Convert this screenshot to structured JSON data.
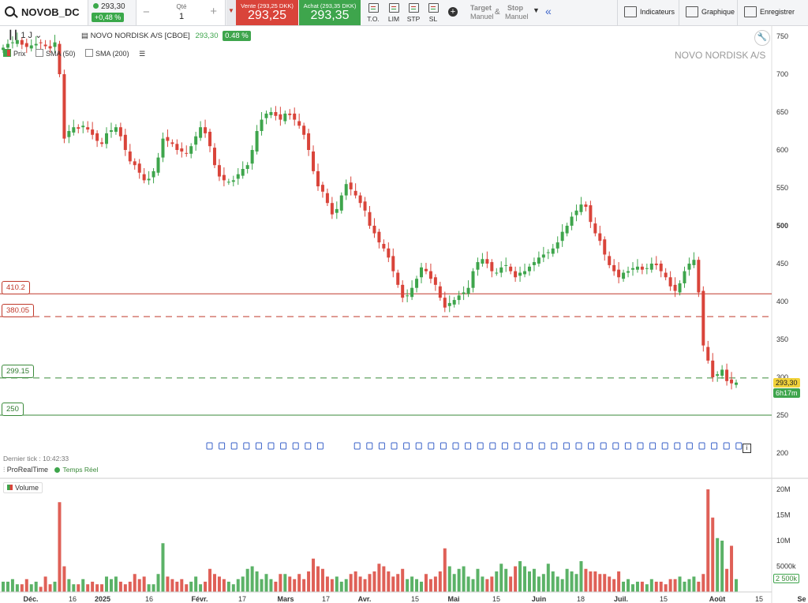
{
  "toolbar": {
    "symbol": "NOVOB_DC",
    "last_price": "293,30",
    "change": "+0,48 %",
    "qty_label": "Qté",
    "qty_value": "1",
    "qty_minus": "−",
    "qty_plus": "+",
    "sell_label": "Vente (293,25 DKK)",
    "sell_price": "293,25",
    "buy_label": "Achat (293,35 DKK)",
    "buy_price": "293,35",
    "order_types": [
      "T.O.",
      "LIM",
      "STP",
      "SL"
    ],
    "target_label": "Target",
    "target_sub": "Manuel",
    "amp": "&",
    "stop_label": "Stop",
    "stop_sub": "Manuel",
    "indicators_label": "Indicateurs",
    "chart_label": "Graphique",
    "save_label": "Enregistrer",
    "icons": [
      "search-icon",
      "plus-circle-icon",
      "chevron-down-icon",
      "collapse-icon",
      "indicators-icon",
      "chart-icon",
      "save-icon",
      "wrench-icon",
      "info-icon"
    ]
  },
  "chart_header": {
    "timeframe": "1 J",
    "series_name": "NOVO NORDISK A/S [CBOE]",
    "series_price": "293,30",
    "series_change": "0.48 %",
    "watermark": "NOVO NORDISK A/S",
    "legend": [
      {
        "label": "Prix",
        "checked": true
      },
      {
        "label": "SMA (50)",
        "checked": false
      },
      {
        "label": "SMA (200)",
        "checked": false
      }
    ]
  },
  "levels": {
    "l1": "410.2",
    "l2": "380.05",
    "l3": "299.15",
    "l4": "250"
  },
  "price_tag": "293,30",
  "countdown": "6h17m",
  "last_tick": "Dernier tick : 10:42:33",
  "provider": "ProRealTime",
  "realtime": "Temps Réel",
  "volume_label": "Volume",
  "volume_marker": "2 500k",
  "colors": {
    "up": "#3ea54c",
    "down": "#d9443a",
    "level_red": "#c0392b",
    "level_green": "#3a8a3a"
  },
  "chart_data": {
    "type": "candlestick",
    "price_axis": {
      "min": 200,
      "max": 750,
      "ticks": [
        750,
        700,
        650,
        600,
        550,
        500,
        450,
        400,
        350,
        300,
        250,
        200
      ]
    },
    "volume_axis": {
      "min": 0,
      "max": 20000000,
      "tick_labels": [
        "20M",
        "15M",
        "10M",
        "5000k"
      ],
      "tick_values": [
        20000000,
        15000000,
        10000000,
        5000000
      ]
    },
    "x_labels": [
      "Déc.",
      "16",
      "2025",
      "16",
      "Févr.",
      "17",
      "Mars",
      "17",
      "Avr.",
      "15",
      "Mai",
      "15",
      "Juin",
      "18",
      "Juil.",
      "15",
      "Août",
      "15",
      "Se"
    ],
    "x_labels_bold": [
      true,
      false,
      true,
      false,
      true,
      false,
      true,
      false,
      true,
      false,
      true,
      false,
      true,
      false,
      true,
      false,
      true,
      false,
      true
    ],
    "horizontal_levels": [
      410.2,
      380.05,
      299.15,
      250
    ],
    "closes": [
      735,
      740,
      742,
      745,
      739,
      736,
      738,
      740,
      741,
      737,
      734,
      742,
      700,
      615,
      625,
      630,
      628,
      632,
      627,
      620,
      612,
      608,
      622,
      626,
      630,
      618,
      600,
      585,
      580,
      570,
      560,
      562,
      572,
      590,
      615,
      612,
      608,
      600,
      598,
      595,
      605,
      618,
      630,
      622,
      605,
      580,
      565,
      560,
      558,
      560,
      568,
      575,
      580,
      600,
      625,
      640,
      648,
      650,
      645,
      640,
      648,
      646,
      640,
      632,
      620,
      600,
      572,
      552,
      545,
      530,
      515,
      522,
      540,
      555,
      548,
      540,
      530,
      520,
      500,
      490,
      478,
      470,
      458,
      440,
      422,
      405,
      408,
      418,
      430,
      445,
      440,
      430,
      422,
      405,
      392,
      398,
      402,
      408,
      412,
      418,
      440,
      452,
      456,
      450,
      440,
      438,
      445,
      448,
      440,
      432,
      438,
      440,
      446,
      452,
      458,
      462,
      465,
      470,
      478,
      492,
      500,
      512,
      520,
      528,
      525,
      505,
      490,
      480,
      462,
      448,
      440,
      432,
      438,
      440,
      444,
      446,
      442,
      444,
      450,
      448,
      440,
      432,
      420,
      414,
      424,
      440,
      450,
      455,
      412,
      342,
      322,
      300,
      304,
      310,
      295,
      292,
      293
    ],
    "volumes_k": [
      2,
      2,
      2.5,
      1.5,
      1.5,
      2.5,
      1.5,
      2,
      1,
      3,
      1.5,
      2,
      17.5,
      5,
      2.5,
      1.5,
      1.5,
      2.5,
      1.5,
      2,
      1.5,
      1.5,
      3,
      2.5,
      3,
      2,
      1.5,
      2,
      3.5,
      2.5,
      3,
      1.5,
      1.5,
      3.5,
      9.5,
      3,
      2.5,
      2,
      2.5,
      1.5,
      2,
      3,
      1.5,
      2,
      4.5,
      3.5,
      3,
      2.5,
      2,
      1.5,
      2.5,
      3,
      4.5,
      5,
      4,
      2.5,
      3.5,
      2.5,
      2,
      3.5,
      3.5,
      3,
      2.5,
      3.5,
      2.5,
      4,
      6.5,
      5,
      4.5,
      3,
      2.5,
      3,
      2,
      2.5,
      3.5,
      4,
      3,
      2.5,
      3.5,
      4,
      5.5,
      5,
      4,
      3,
      3.5,
      4.5,
      2.5,
      3,
      2.5,
      2,
      3.5,
      2.5,
      3,
      4,
      8.5,
      5,
      3.5,
      4.5,
      5,
      3,
      2.5,
      4.5,
      3,
      2.5,
      3,
      4,
      5.5,
      4.5,
      3,
      5,
      6,
      5,
      4,
      4.5,
      3,
      3.5,
      5.5,
      4,
      3,
      2.5,
      4.5,
      4,
      3.5,
      6,
      4.5,
      4,
      4,
      3.5,
      3.5,
      3,
      2.5,
      4,
      2,
      2.5,
      1.5,
      2,
      2,
      1.5,
      2.5,
      2,
      2,
      1.5,
      2.5,
      2.5,
      3,
      2,
      2.5,
      3,
      2,
      3.5,
      20,
      14.5,
      10.5,
      10,
      4.5,
      9,
      2.5
    ]
  }
}
